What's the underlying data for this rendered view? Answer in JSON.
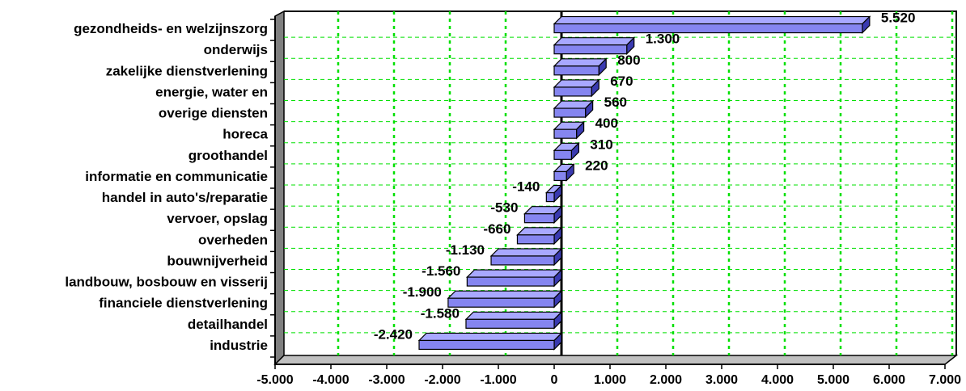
{
  "chart_data": {
    "type": "bar",
    "orientation": "horizontal",
    "three_d": true,
    "categories": [
      "gezondheids- en welzijnszorg",
      "onderwijs",
      "zakelijke dienstverlening",
      "energie, water en",
      "overige diensten",
      "horeca",
      "groothandel",
      "informatie en communicatie",
      "handel in auto's/reparatie",
      "vervoer, opslag",
      "overheden",
      "bouwnijverheid",
      "landbouw, bosbouw en visserij",
      "financiele dienstverlening",
      "detailhandel",
      "industrie"
    ],
    "values": [
      5520,
      1300,
      800,
      670,
      560,
      400,
      310,
      220,
      -140,
      -530,
      -660,
      -1130,
      -1560,
      -1900,
      -1580,
      -2420
    ],
    "data_labels": [
      "5.520",
      "1.300",
      "800",
      "670",
      "560",
      "400",
      "310",
      "220",
      "-140",
      "-530",
      "-660",
      "-1.130",
      "-1.560",
      "-1.900",
      "-1.580",
      "-2.420"
    ],
    "xlim": [
      -5000,
      7000
    ],
    "x_ticks": [
      -5000,
      -4000,
      -3000,
      -2000,
      -1000,
      0,
      1000,
      2000,
      3000,
      4000,
      5000,
      6000,
      7000
    ],
    "x_tick_labels": [
      "-5.000",
      "-4.000",
      "-3.000",
      "-2.000",
      "-1.000",
      "0",
      "1.000",
      "2.000",
      "3.000",
      "4.000",
      "5.000",
      "6.000",
      "7.000"
    ],
    "grid": true,
    "title": "",
    "xlabel": "",
    "ylabel": "",
    "colors": {
      "bar_front": "#8585f0",
      "bar_top": "#a8a8ff",
      "bar_side": "#3a3ab0",
      "bar_outline": "#000000",
      "grid_vertical": "#00e000",
      "grid_horizontal": "#00e000",
      "wall_side": "#808080",
      "floor": "#c0c0c0"
    }
  }
}
